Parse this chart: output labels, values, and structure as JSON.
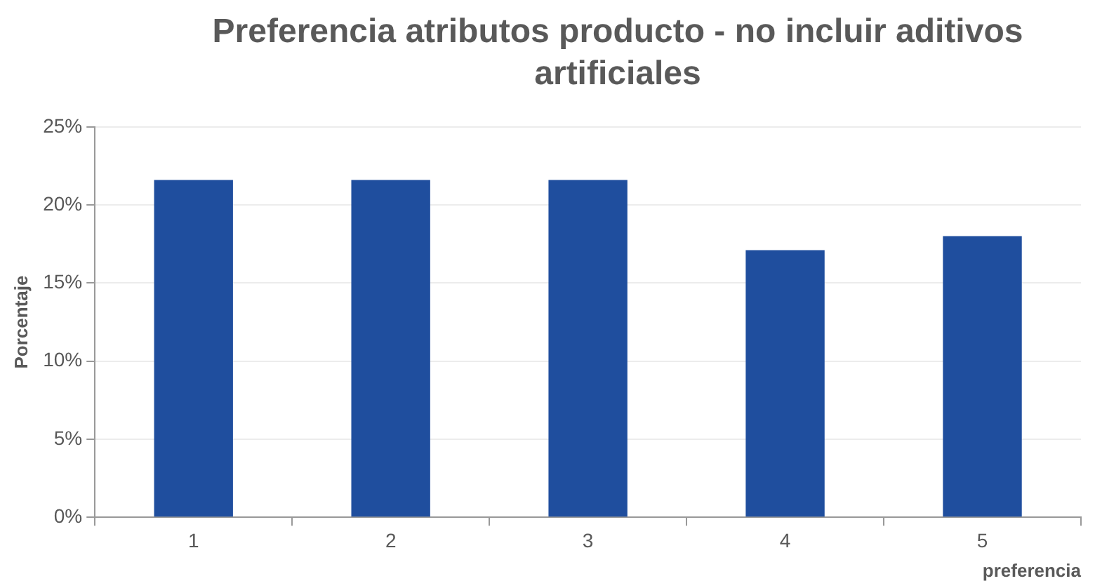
{
  "chart_data": {
    "type": "bar",
    "title": "Preferencia atributos producto - no incluir aditivos artificiales",
    "xlabel": "preferencia",
    "ylabel": "Porcentaje",
    "categories": [
      "1",
      "2",
      "3",
      "4",
      "5"
    ],
    "values": [
      21.6,
      21.6,
      21.6,
      17.1,
      18.0
    ],
    "color": "#1f4e9e",
    "ylim": [
      0,
      25
    ],
    "yticks": [
      {
        "value": 0,
        "label": "0%"
      },
      {
        "value": 5,
        "label": "5%"
      },
      {
        "value": 10,
        "label": "10%"
      },
      {
        "value": 15,
        "label": "15%"
      },
      {
        "value": 20,
        "label": "20%"
      },
      {
        "value": 25,
        "label": "25%"
      }
    ],
    "grid": "y",
    "legend": false
  }
}
